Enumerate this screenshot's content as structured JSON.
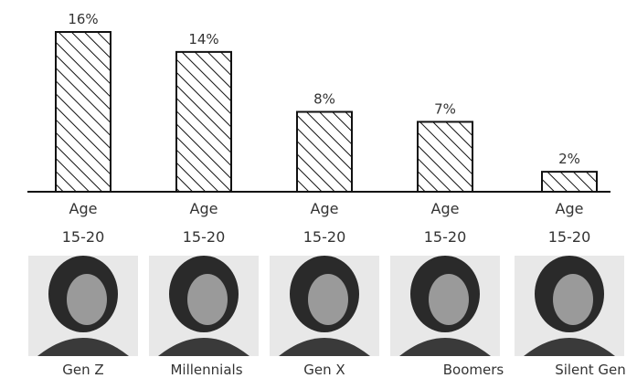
{
  "chart_data": {
    "type": "bar",
    "categories": [
      "Gen Z",
      "Millennials",
      "Gen X",
      "Boomers",
      "Silent Gen"
    ],
    "values": [
      16,
      14,
      8,
      7,
      2
    ],
    "value_labels": [
      "16%",
      "14%",
      "8%",
      "7%",
      "2%"
    ],
    "age_line1": [
      "Age",
      "Age",
      "Age",
      "Age",
      "Age"
    ],
    "age_line2": [
      "15-20",
      "15-20",
      "15-20",
      "15-20",
      "15-20"
    ],
    "title": "",
    "xlabel": "",
    "ylabel": "",
    "ylim": [
      0,
      16
    ],
    "grid": false,
    "pattern": "diagonal-hatch",
    "bar_fill": "#ffffff",
    "bar_stroke": "#111111"
  }
}
